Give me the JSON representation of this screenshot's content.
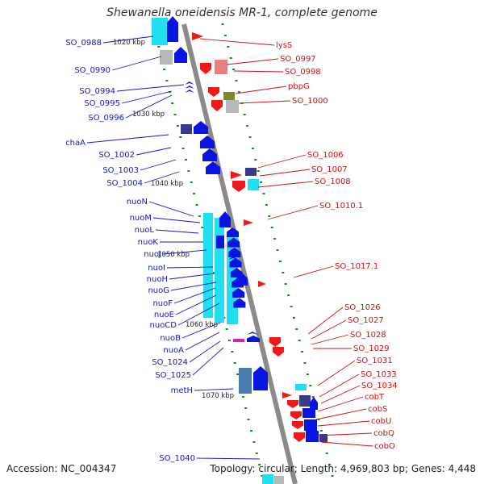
{
  "title": "Shewanella oneidensis MR-1, complete genome",
  "accession": "Accession: NC_004347",
  "summary": "Topology: circular; Length: 4,969,803 bp; Genes: 4,448",
  "colors": {
    "backbone": "#8a8a8a",
    "left_label": "#1515c8",
    "right_label": "#d01010",
    "tick": "#1a8a1a",
    "blue": "#0a14e0",
    "cyan": "#20e0f0",
    "gray": "#b8b8b8",
    "red": "#f01818",
    "pink": "#e88080",
    "olive": "#7a8a2a",
    "navy": "#3a3a8a",
    "steel": "#4a7fb0",
    "magenta": "#e020b0"
  },
  "kbp_marks": [
    "1020 kbp",
    "1030 kbp",
    "1040 kbp",
    "1050 kbp",
    "1060 kbp",
    "1070 kbp"
  ],
  "left_labels": [
    "SO_0988",
    "SO_0990",
    "SO_0994",
    "SO_0995",
    "SO_0996",
    "chaA",
    "SO_1002",
    "SO_1003",
    "SO_1004",
    "nuoN",
    "nuoM",
    "nuoL",
    "nuoK",
    "nuoJ",
    "nuoI",
    "nuoH",
    "nuoG",
    "nuoF",
    "nuoE",
    "nuoCD",
    "nuoB",
    "nuoA",
    "SO_1024",
    "SO_1025",
    "metH",
    "SO_1040"
  ],
  "right_labels": [
    "lysS",
    "SO_0997",
    "SO_0998",
    "pbpG",
    "SO_1000",
    "SO_1006",
    "SO_1007",
    "SO_1008",
    "SO_1010.1",
    "SO_1017.1",
    "SO_1026",
    "SO_1027",
    "SO_1028",
    "SO_1029",
    "SO_1031",
    "SO_1033",
    "SO_1034",
    "cobT",
    "cobS",
    "cobU",
    "cobQ",
    "cobO"
  ]
}
